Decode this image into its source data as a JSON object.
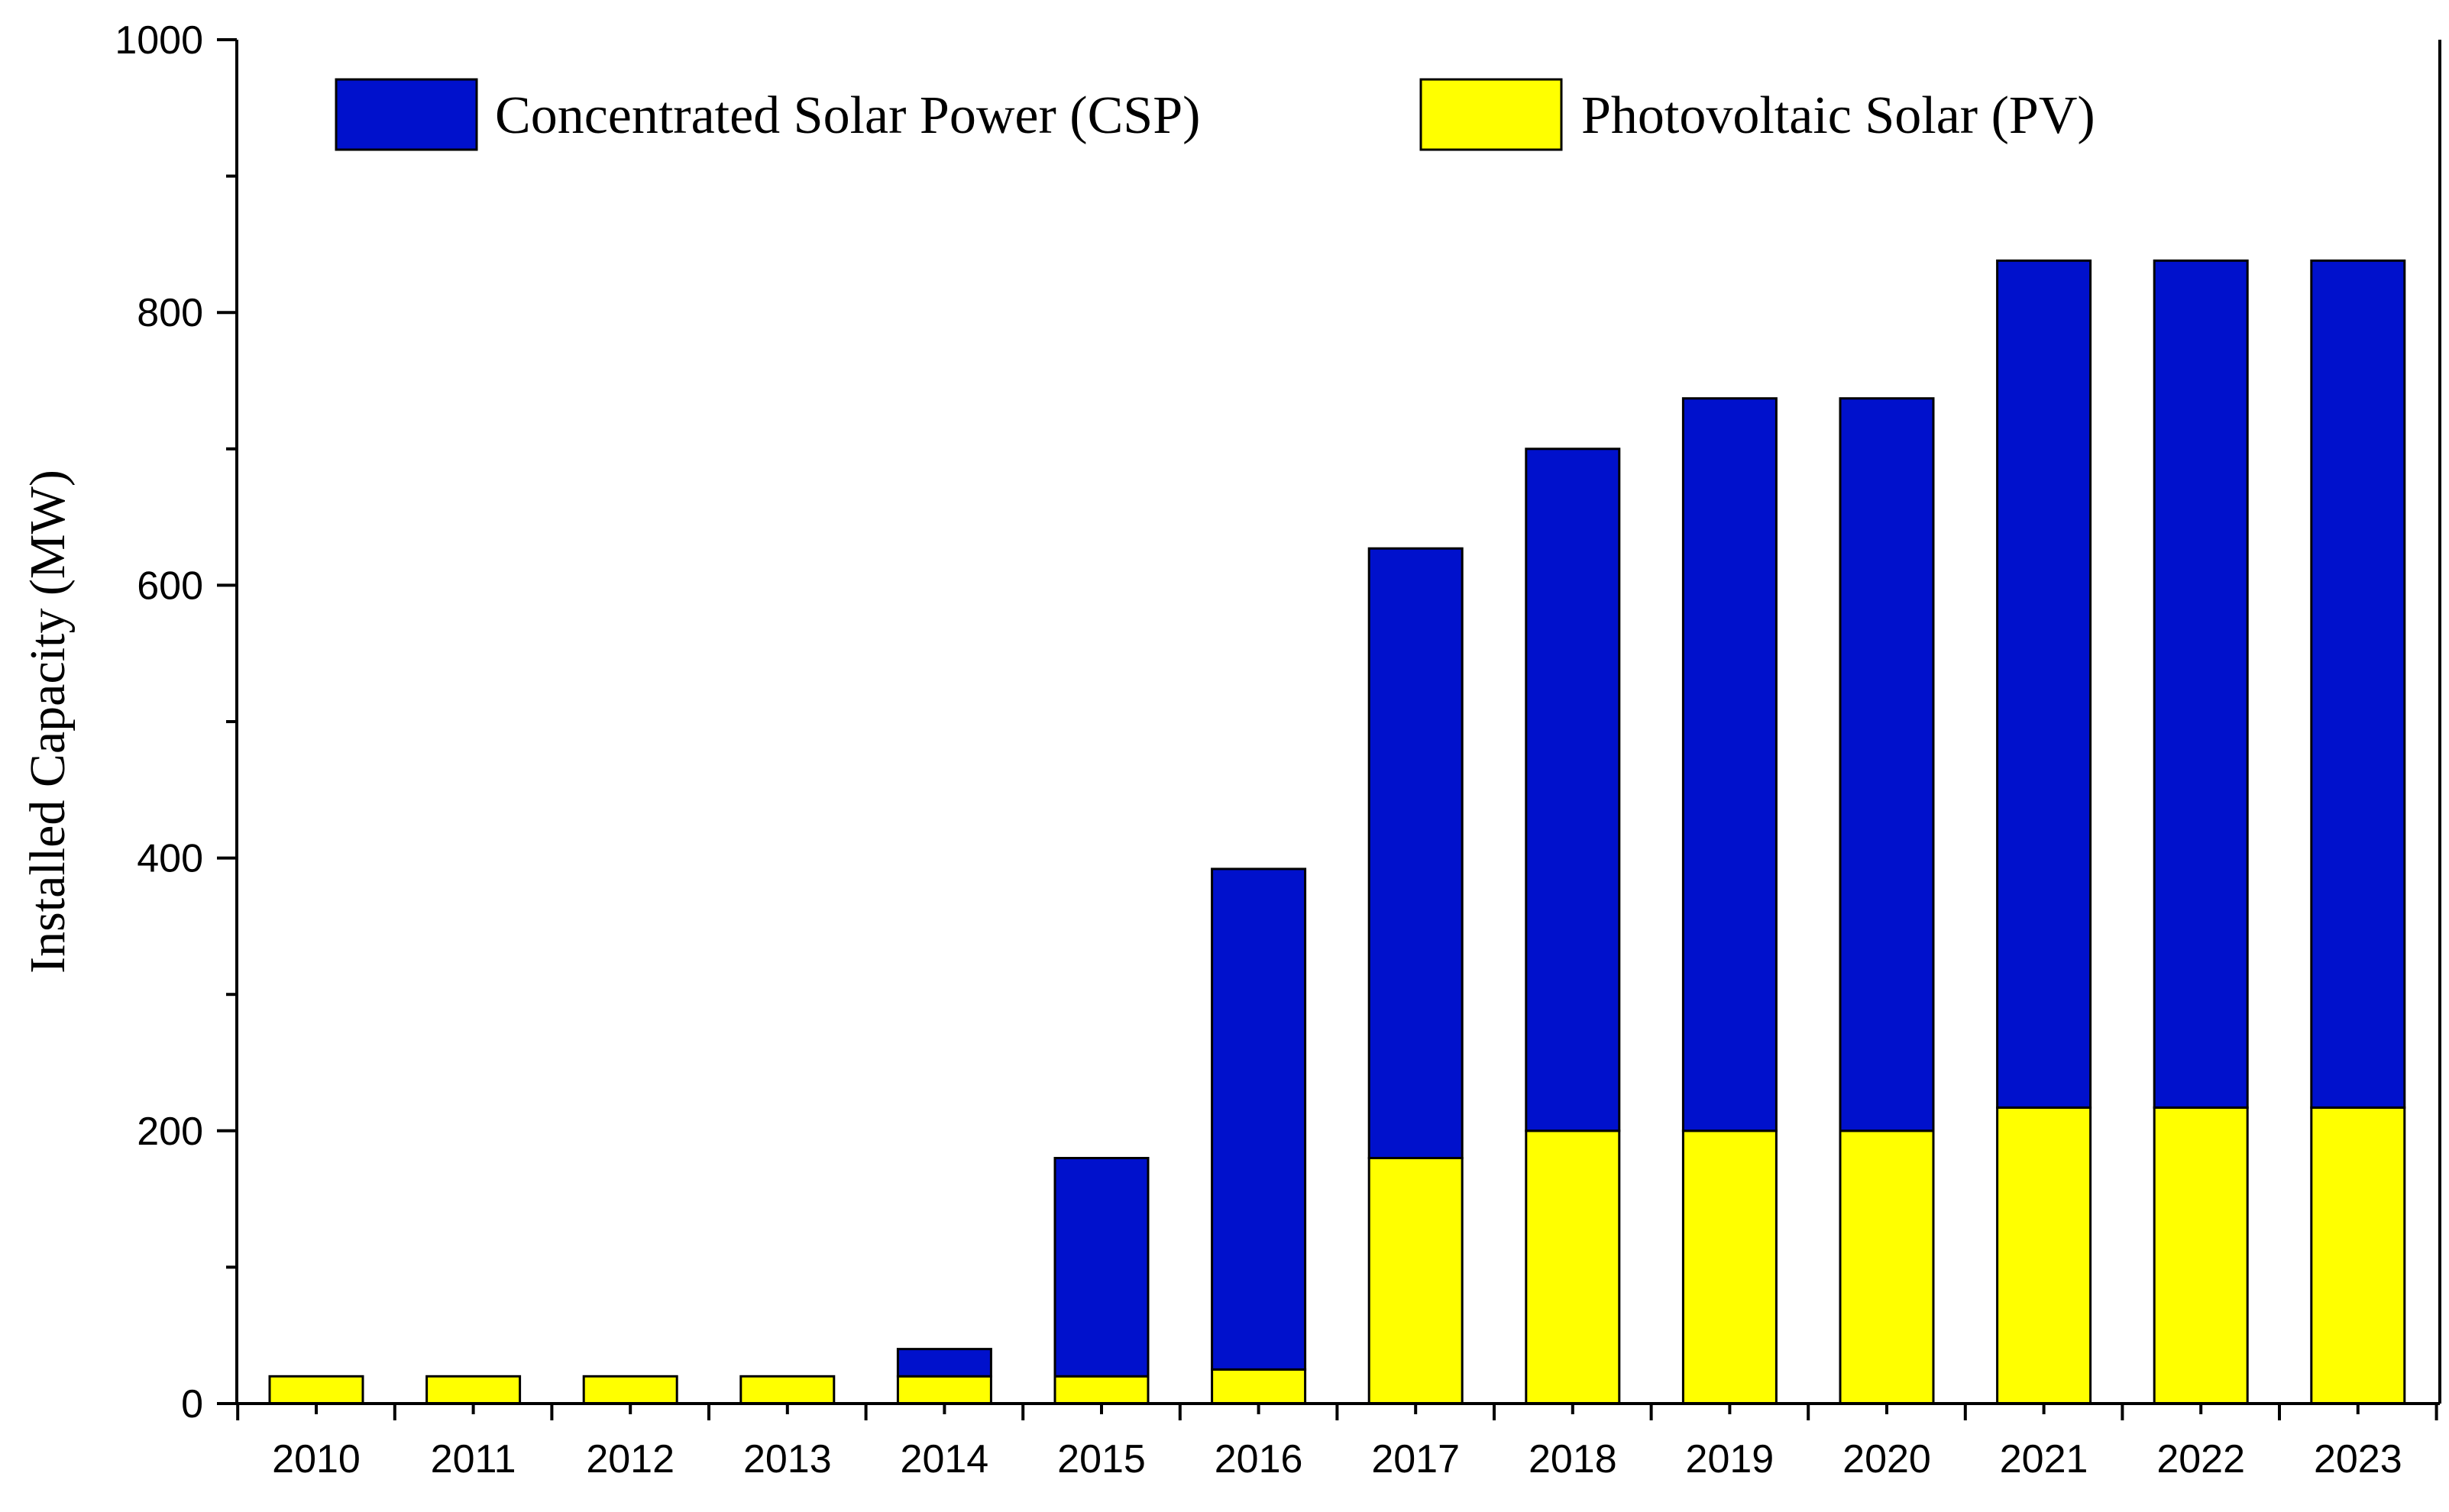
{
  "chart_data": {
    "type": "bar",
    "stacked": true,
    "title": "",
    "xlabel": "",
    "ylabel": "Installed Capacity (MW)",
    "ylim": [
      0,
      1000
    ],
    "yticks": [
      "0",
      "200",
      "400",
      "600",
      "800",
      "1000"
    ],
    "categories": [
      "2010",
      "2011",
      "2012",
      "2013",
      "2014",
      "2015",
      "2016",
      "2017",
      "2018",
      "2019",
      "2020",
      "2021",
      "2022",
      "2023"
    ],
    "series": [
      {
        "name": "Photovoltaic Solar (PV)",
        "color": "#ffff00",
        "values": [
          20,
          20,
          20,
          20,
          20,
          20,
          25,
          180,
          200,
          200,
          200,
          217,
          217,
          217
        ]
      },
      {
        "name": "Concentrated Solar Power (CSP)",
        "color": "#0011cc",
        "values": [
          0,
          0,
          0,
          0,
          20,
          160,
          367,
          447,
          500,
          537,
          537,
          621,
          621,
          621
        ]
      }
    ],
    "legend": {
      "position": "top",
      "entries": [
        "Concentrated Solar Power (CSP)",
        "Photovoltaic Solar (PV)"
      ]
    },
    "grid": false
  }
}
